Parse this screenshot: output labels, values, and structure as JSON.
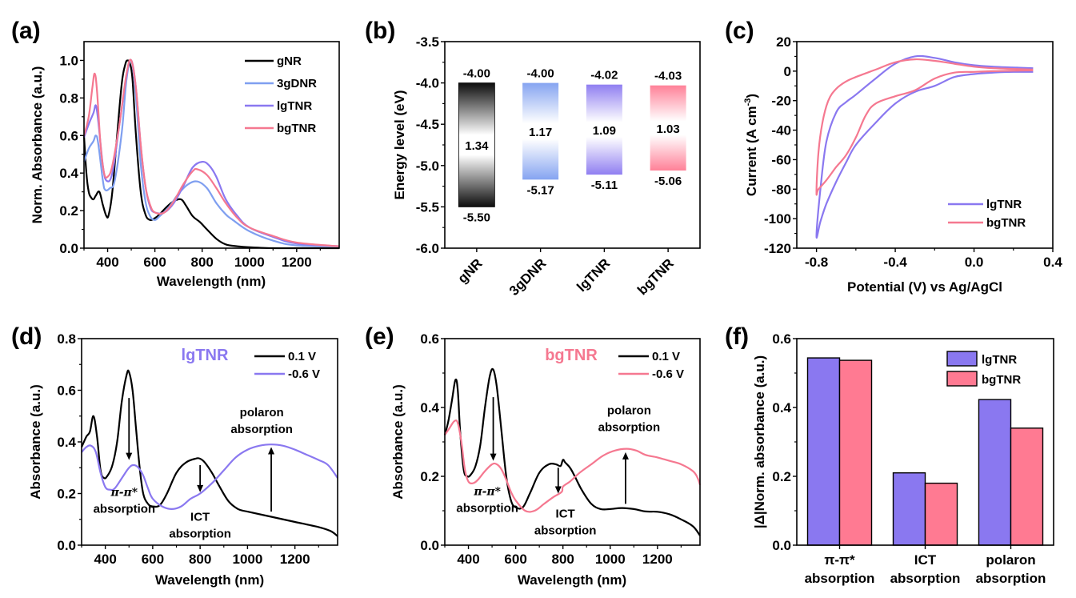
{
  "chart_data": [
    {
      "id": "a",
      "panel_label": "(a)",
      "type": "line",
      "xlabel": "Wavelength (nm)",
      "ylabel": "Norm. Absorbance (a.u.)",
      "xlim": [
        300,
        1380
      ],
      "ylim": [
        0.0,
        1.1
      ],
      "xticks": [
        400,
        600,
        800,
        1000,
        1200
      ],
      "xtick_labels": [
        "400",
        "600",
        "800",
        "1000",
        "1200"
      ],
      "yticks": [
        0.0,
        0.2,
        0.4,
        0.6,
        0.8,
        1.0
      ],
      "ytick_labels": [
        "0.0",
        "0.2",
        "0.4",
        "0.6",
        "0.8",
        "1.0"
      ],
      "legend_position": "top-right",
      "series": [
        {
          "name": "gNR",
          "color": "#000000",
          "x": [
            300,
            310,
            320,
            330,
            340,
            350,
            365,
            380,
            395,
            405,
            420,
            440,
            460,
            475,
            485,
            495,
            505,
            520,
            540,
            560,
            580,
            600,
            620,
            650,
            680,
            710,
            730,
            760,
            790,
            820,
            860,
            900,
            950,
            1000,
            1100,
            1200,
            1380
          ],
          "y": [
            0.6,
            0.4,
            0.3,
            0.27,
            0.26,
            0.28,
            0.3,
            0.23,
            0.17,
            0.18,
            0.3,
            0.6,
            0.88,
            0.98,
            1.0,
            0.98,
            0.9,
            0.6,
            0.3,
            0.18,
            0.15,
            0.16,
            0.18,
            0.22,
            0.25,
            0.26,
            0.23,
            0.17,
            0.14,
            0.1,
            0.05,
            0.02,
            0.01,
            0.005,
            0.0,
            0.0,
            0.0
          ]
        },
        {
          "name": "3gDNR",
          "color": "#7F9FF0",
          "x": [
            300,
            320,
            340,
            350,
            360,
            380,
            390,
            410,
            430,
            460,
            480,
            500,
            520,
            540,
            560,
            580,
            600,
            620,
            660,
            700,
            740,
            780,
            820,
            860,
            900,
            930,
            1000,
            1100,
            1200,
            1380
          ],
          "y": [
            0.46,
            0.53,
            0.57,
            0.6,
            0.56,
            0.36,
            0.31,
            0.32,
            0.36,
            0.62,
            0.9,
            1.0,
            0.8,
            0.45,
            0.25,
            0.17,
            0.15,
            0.17,
            0.22,
            0.29,
            0.34,
            0.355,
            0.32,
            0.24,
            0.18,
            0.15,
            0.09,
            0.04,
            0.015,
            0.01
          ]
        },
        {
          "name": "lgTNR",
          "color": "#8A78F0",
          "x": [
            300,
            320,
            340,
            350,
            360,
            380,
            395,
            420,
            450,
            480,
            500,
            520,
            540,
            560,
            580,
            600,
            640,
            680,
            720,
            760,
            800,
            830,
            860,
            900,
            950,
            1000,
            1100,
            1200,
            1380
          ],
          "y": [
            0.59,
            0.66,
            0.72,
            0.76,
            0.68,
            0.44,
            0.36,
            0.4,
            0.66,
            0.92,
            1.0,
            0.85,
            0.55,
            0.33,
            0.22,
            0.19,
            0.19,
            0.24,
            0.33,
            0.43,
            0.46,
            0.44,
            0.38,
            0.26,
            0.17,
            0.11,
            0.06,
            0.025,
            0.01
          ]
        },
        {
          "name": "bgTNR",
          "color": "#F57890",
          "x": [
            300,
            320,
            335,
            345,
            355,
            370,
            385,
            400,
            420,
            450,
            480,
            500,
            520,
            540,
            560,
            580,
            600,
            640,
            680,
            720,
            760,
            780,
            820,
            860,
            900,
            950,
            1000,
            1100,
            1200,
            1380
          ],
          "y": [
            0.6,
            0.7,
            0.85,
            0.93,
            0.84,
            0.55,
            0.4,
            0.38,
            0.44,
            0.66,
            0.93,
            1.0,
            0.85,
            0.55,
            0.33,
            0.23,
            0.19,
            0.19,
            0.25,
            0.34,
            0.41,
            0.42,
            0.39,
            0.32,
            0.24,
            0.16,
            0.11,
            0.065,
            0.03,
            0.01
          ]
        }
      ]
    },
    {
      "id": "b",
      "panel_label": "(b)",
      "type": "bar",
      "ylabel": "Energy level (eV)",
      "ylim": [
        -6.0,
        -3.5
      ],
      "yticks": [
        -6.0,
        -5.5,
        -5.0,
        -4.5,
        -4.0,
        -3.5
      ],
      "ytick_labels": [
        "-6.0",
        "-5.5",
        "-5.0",
        "-4.5",
        "-4.0",
        "-3.5"
      ],
      "categories": [
        "gNR",
        "3gDNR",
        "lgTNR",
        "bgTNR"
      ],
      "lumo": [
        -4.0,
        -4.0,
        -4.02,
        -4.03
      ],
      "homo": [
        -5.5,
        -5.17,
        -5.11,
        -5.06
      ],
      "gap": [
        1.34,
        1.17,
        1.09,
        1.03
      ],
      "lumo_labels": [
        "-4.00",
        "-4.00",
        "-4.02",
        "-4.03"
      ],
      "homo_labels": [
        "-5.50",
        "-5.17",
        "-5.11",
        "-5.06"
      ],
      "gap_labels": [
        "1.34",
        "1.17",
        "1.09",
        "1.03"
      ],
      "colors": [
        "#000000",
        "#7F9FF0",
        "#8A78F0",
        "#FF7A92"
      ]
    },
    {
      "id": "c",
      "panel_label": "(c)",
      "type": "line",
      "xlabel": "Potential (V) vs Ag/AgCl",
      "ylabel": "Current (A cm",
      "ylabel_sup": "-3",
      "ylabel_end": ")",
      "xlim": [
        -0.9,
        0.4
      ],
      "ylim": [
        -120,
        20
      ],
      "xticks": [
        -0.8,
        -0.4,
        0.0,
        0.4
      ],
      "xtick_labels": [
        "-0.8",
        "-0.4",
        "0.0",
        "0.4"
      ],
      "yticks": [
        -120,
        -100,
        -80,
        -60,
        -40,
        -20,
        0,
        20
      ],
      "ytick_labels": [
        "-120",
        "-100",
        "-80",
        "-60",
        "-40",
        "-20",
        "0",
        "20"
      ],
      "legend_position": "bottom-right",
      "series": [
        {
          "name": "lgTNR",
          "color": "#8A78F0",
          "x": [
            0.3,
            0.2,
            0.1,
            0.0,
            -0.1,
            -0.2,
            -0.3,
            -0.4,
            -0.5,
            -0.6,
            -0.65,
            -0.7,
            -0.75,
            -0.78,
            -0.8,
            -0.78,
            -0.75,
            -0.7,
            -0.65,
            -0.6,
            -0.5,
            -0.4,
            -0.3,
            -0.2,
            -0.1,
            0.0,
            0.1,
            0.2,
            0.3
          ],
          "y": [
            -0.5,
            -0.5,
            -1.0,
            -2.0,
            -4.0,
            -10.0,
            -14.0,
            -22.0,
            -35.0,
            -50.0,
            -62.0,
            -75.0,
            -90.0,
            -102.0,
            -112.0,
            -80.0,
            -48.0,
            -28.0,
            -21.0,
            -16.0,
            -5.0,
            5.0,
            10.0,
            9.0,
            6.0,
            4.0,
            3.0,
            2.5,
            2.0
          ]
        },
        {
          "name": "bgTNR",
          "color": "#F57890",
          "x": [
            0.3,
            0.2,
            0.1,
            0.0,
            -0.1,
            -0.2,
            -0.3,
            -0.4,
            -0.5,
            -0.55,
            -0.6,
            -0.65,
            -0.7,
            -0.75,
            -0.79,
            -0.8,
            -0.79,
            -0.77,
            -0.74,
            -0.7,
            -0.65,
            -0.6,
            -0.5,
            -0.4,
            -0.3,
            -0.2,
            -0.1,
            0.0,
            0.1,
            0.2,
            0.3
          ],
          "y": [
            0.5,
            0.3,
            0.0,
            -0.5,
            -1.0,
            -5.0,
            -13.0,
            -17.0,
            -22.0,
            -30.0,
            -45.0,
            -57.0,
            -65.0,
            -74.0,
            -80.0,
            -82.0,
            -55.0,
            -35.0,
            -20.0,
            -12.0,
            -7.0,
            -4.0,
            1.0,
            6.0,
            8.0,
            7.0,
            5.0,
            3.0,
            2.0,
            1.5,
            1.0
          ]
        }
      ]
    },
    {
      "id": "d",
      "panel_label": "(d)",
      "type": "line",
      "title": "lgTNR",
      "title_color": "#8A78F0",
      "xlabel": "Wavelength (nm)",
      "ylabel": "Absorbance (a.u.)",
      "xlim": [
        300,
        1380
      ],
      "ylim": [
        0.0,
        0.8
      ],
      "xticks": [
        400,
        600,
        800,
        1000,
        1200
      ],
      "xtick_labels": [
        "400",
        "600",
        "800",
        "1000",
        "1200"
      ],
      "yticks": [
        0.0,
        0.2,
        0.4,
        0.6,
        0.8
      ],
      "ytick_labels": [
        "0.0",
        "0.2",
        "0.4",
        "0.6",
        "0.8"
      ],
      "legend_position": "top-right",
      "series": [
        {
          "name": "0.1 V",
          "color": "#000000",
          "x": [
            300,
            320,
            335,
            350,
            365,
            380,
            395,
            410,
            430,
            450,
            470,
            490,
            500,
            515,
            530,
            545,
            560,
            580,
            600,
            630,
            660,
            700,
            740,
            780,
            800,
            820,
            850,
            880,
            920,
            960,
            1000,
            1100,
            1200,
            1300,
            1350,
            1380
          ],
          "y": [
            0.38,
            0.42,
            0.44,
            0.5,
            0.42,
            0.29,
            0.26,
            0.27,
            0.31,
            0.4,
            0.56,
            0.66,
            0.67,
            0.6,
            0.45,
            0.3,
            0.2,
            0.16,
            0.15,
            0.155,
            0.2,
            0.28,
            0.32,
            0.335,
            0.335,
            0.32,
            0.28,
            0.23,
            0.17,
            0.14,
            0.13,
            0.11,
            0.09,
            0.07,
            0.055,
            0.035
          ]
        },
        {
          "name": "-0.6 V",
          "color": "#8A78F0",
          "x": [
            300,
            320,
            340,
            360,
            380,
            400,
            420,
            440,
            470,
            500,
            520,
            540,
            560,
            580,
            600,
            640,
            680,
            720,
            760,
            800,
            850,
            900,
            950,
            1000,
            1050,
            1100,
            1150,
            1200,
            1250,
            1300,
            1340,
            1380
          ],
          "y": [
            0.36,
            0.38,
            0.385,
            0.36,
            0.28,
            0.225,
            0.215,
            0.22,
            0.26,
            0.3,
            0.31,
            0.3,
            0.27,
            0.22,
            0.18,
            0.15,
            0.14,
            0.15,
            0.18,
            0.2,
            0.24,
            0.29,
            0.34,
            0.37,
            0.385,
            0.39,
            0.385,
            0.37,
            0.35,
            0.33,
            0.31,
            0.26
          ]
        }
      ],
      "annotations": [
        {
          "label_top": "π-π*",
          "label_bottom": "absorption",
          "x": 480,
          "y": 0.19
        },
        {
          "label_top": "ICT",
          "label_bottom": "absorption",
          "x": 800,
          "y": 0.095
        },
        {
          "label_top": "polaron",
          "label_bottom": "absorption",
          "x": 1060,
          "y": 0.5
        }
      ],
      "arrows": [
        {
          "x": 500,
          "from": 0.57,
          "to": 0.33
        },
        {
          "x": 800,
          "from": 0.31,
          "to": 0.205
        },
        {
          "x": 1100,
          "from": 0.13,
          "to": 0.38
        }
      ]
    },
    {
      "id": "e",
      "panel_label": "(e)",
      "type": "line",
      "title": "bgTNR",
      "title_color": "#F57890",
      "xlabel": "Wavelength (nm)",
      "ylabel": "Absorbance (a.u.)",
      "xlim": [
        300,
        1380
      ],
      "ylim": [
        0.0,
        0.6
      ],
      "xticks": [
        400,
        600,
        800,
        1000,
        1200
      ],
      "xtick_labels": [
        "400",
        "600",
        "800",
        "1000",
        "1200"
      ],
      "yticks": [
        0.0,
        0.2,
        0.4,
        0.6
      ],
      "ytick_labels": [
        "0.0",
        "0.2",
        "0.4",
        "0.6"
      ],
      "legend_position": "top-right",
      "series": [
        {
          "name": "0.1 V",
          "color": "#000000",
          "x": [
            300,
            315,
            330,
            345,
            355,
            365,
            380,
            395,
            410,
            430,
            450,
            470,
            490,
            505,
            520,
            540,
            560,
            580,
            600,
            630,
            660,
            700,
            740,
            770,
            790,
            800,
            810,
            830,
            850,
            880,
            920,
            960,
            1000,
            1050,
            1100,
            1150,
            1200,
            1250,
            1300,
            1350,
            1380
          ],
          "y": [
            0.32,
            0.36,
            0.42,
            0.48,
            0.45,
            0.33,
            0.22,
            0.2,
            0.205,
            0.23,
            0.29,
            0.4,
            0.49,
            0.51,
            0.46,
            0.33,
            0.2,
            0.13,
            0.11,
            0.11,
            0.15,
            0.21,
            0.235,
            0.235,
            0.23,
            0.248,
            0.24,
            0.225,
            0.2,
            0.16,
            0.12,
            0.105,
            0.105,
            0.108,
            0.105,
            0.098,
            0.097,
            0.09,
            0.075,
            0.055,
            0.028
          ]
        },
        {
          "name": "-0.6 V",
          "color": "#F57890",
          "x": [
            300,
            320,
            340,
            355,
            370,
            385,
            400,
            420,
            440,
            470,
            500,
            520,
            540,
            560,
            580,
            600,
            640,
            680,
            720,
            760,
            795,
            800,
            830,
            870,
            920,
            970,
            1020,
            1070,
            1110,
            1150,
            1200,
            1250,
            1300,
            1350,
            1370,
            1380
          ],
          "y": [
            0.32,
            0.34,
            0.36,
            0.355,
            0.3,
            0.22,
            0.185,
            0.18,
            0.19,
            0.215,
            0.235,
            0.235,
            0.22,
            0.19,
            0.155,
            0.13,
            0.1,
            0.1,
            0.12,
            0.14,
            0.155,
            0.17,
            0.185,
            0.21,
            0.235,
            0.26,
            0.275,
            0.28,
            0.275,
            0.262,
            0.255,
            0.245,
            0.235,
            0.215,
            0.195,
            0.175
          ]
        }
      ],
      "annotations": [
        {
          "label_top": "π-π*",
          "label_bottom": "absorption",
          "x": 480,
          "y": 0.145
        },
        {
          "label_top": "ICT",
          "label_bottom": "absorption",
          "x": 810,
          "y": 0.08
        },
        {
          "label_top": "polaron",
          "label_bottom": "absorption",
          "x": 1080,
          "y": 0.38
        }
      ],
      "arrows": [
        {
          "x": 505,
          "from": 0.43,
          "to": 0.245
        },
        {
          "x": 780,
          "from": 0.225,
          "to": 0.15
        },
        {
          "x": 1065,
          "from": 0.12,
          "to": 0.27
        }
      ]
    },
    {
      "id": "f",
      "panel_label": "(f)",
      "type": "bar",
      "ylabel": "|Δ|Norm. absorbance (a.u.)",
      "ylim": [
        0.0,
        0.6
      ],
      "yticks": [
        0.0,
        0.2,
        0.4,
        0.6
      ],
      "ytick_labels": [
        "0.0",
        "0.2",
        "0.4",
        "0.6"
      ],
      "categories": [
        {
          "top": "π-π*",
          "bottom": "absorption"
        },
        {
          "top": "ICT",
          "bottom": "absorption"
        },
        {
          "top": "polaron",
          "bottom": "absorption"
        }
      ],
      "legend_position": "top-right",
      "series": [
        {
          "name": "lgTNR",
          "color": "#8A78F0",
          "values": [
            0.544,
            0.21,
            0.423
          ]
        },
        {
          "name": "bgTNR",
          "color": "#FF7A92",
          "values": [
            0.537,
            0.18,
            0.34
          ]
        }
      ]
    }
  ]
}
